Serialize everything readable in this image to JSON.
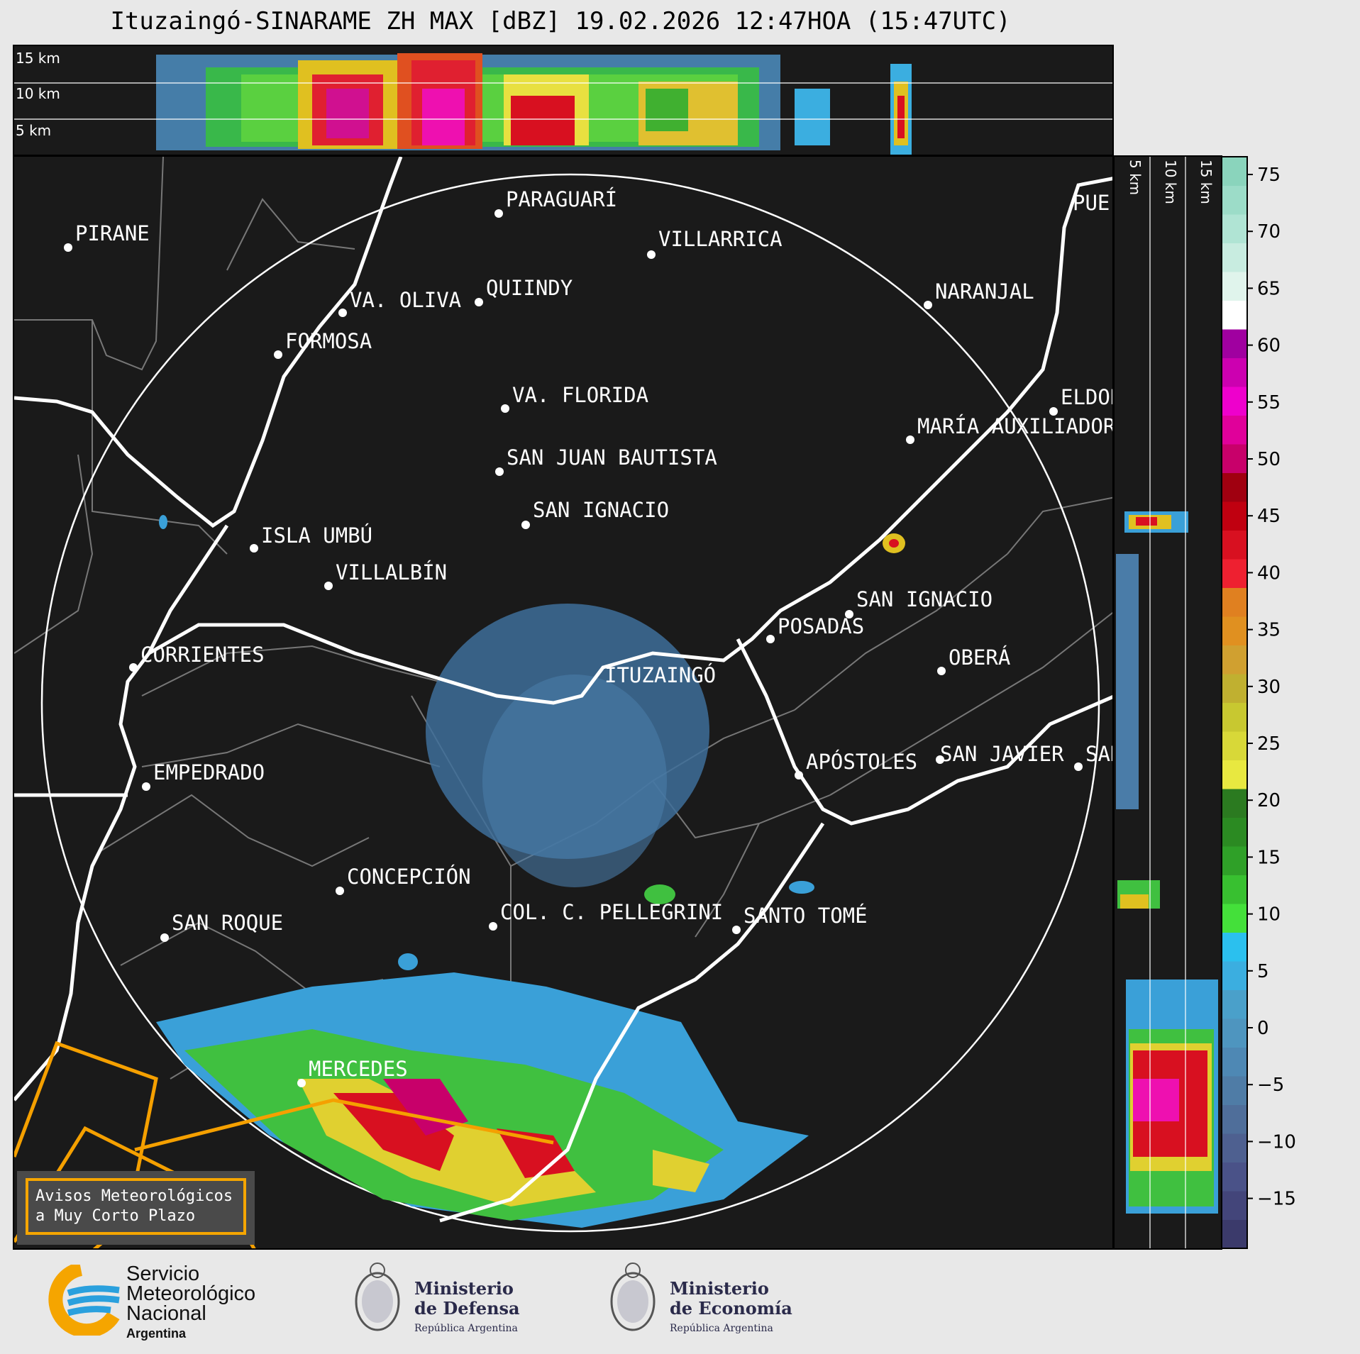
{
  "title": "Ituzaingó-SINARAME ZH MAX [dBZ] 19.02.2026 12:47HOA (15:47UTC)",
  "top_panel": {
    "km_labels": [
      "15 km",
      "10 km",
      "5 km"
    ]
  },
  "side_panel": {
    "km_labels": [
      "5 km",
      "10 km",
      "15 km"
    ]
  },
  "radar_site": "ITUZAINGÓ",
  "cities": [
    {
      "name": "PARAGUARÍ"
    },
    {
      "name": "VILLARRICA"
    },
    {
      "name": "PIRANE"
    },
    {
      "name": "QUIINDY"
    },
    {
      "name": "VA. OLIVA"
    },
    {
      "name": "NARANJAL"
    },
    {
      "name": "FORMOSA"
    },
    {
      "name": "VA. FLORIDA"
    },
    {
      "name": "ELDOR"
    },
    {
      "name": "MARÍA AUXILIADOR"
    },
    {
      "name": "SAN JUAN BAUTISTA"
    },
    {
      "name": "SAN IGNACIO"
    },
    {
      "name": "ISLA UMBÚ"
    },
    {
      "name": "VILLALBÍN"
    },
    {
      "name": "SAN IGNACIO"
    },
    {
      "name": "POSADAS"
    },
    {
      "name": "CORRIENTES"
    },
    {
      "name": "OBERÁ"
    },
    {
      "name": "EMPEDRADO"
    },
    {
      "name": "APÓSTOLES"
    },
    {
      "name": "SAN JAVIER"
    },
    {
      "name": "SAN"
    },
    {
      "name": "CONCEPCIÓN"
    },
    {
      "name": "COL. C. PELLEGRINI"
    },
    {
      "name": "SAN ROQUE"
    },
    {
      "name": "SANTO TOMÉ"
    },
    {
      "name": "MERCEDES"
    },
    {
      "name": "PUE"
    }
  ],
  "colorbar": {
    "ticks": [
      "75",
      "70",
      "65",
      "60",
      "55",
      "50",
      "45",
      "40",
      "35",
      "30",
      "25",
      "20",
      "15",
      "10",
      "5",
      "0",
      "−5",
      "−10",
      "−15"
    ],
    "colors": [
      "#3b3a6b",
      "#43457a",
      "#4a5288",
      "#4e6090",
      "#4f6e9a",
      "#4f7ca6",
      "#4e88b4",
      "#4e95bf",
      "#4aa0ca",
      "#3baee0",
      "#2bc0ee",
      "#44e03a",
      "#38c030",
      "#2fa028",
      "#2b8a22",
      "#2b7a20",
      "#e8e840",
      "#d8d838",
      "#c8c830",
      "#c0b030",
      "#d0a030",
      "#e09020",
      "#e08020",
      "#ee2030",
      "#d81020",
      "#c00010",
      "#a00010",
      "#c8006a",
      "#e0009a",
      "#ee00cc",
      "#cc00b0",
      "#a000a0",
      "#ffffff",
      "#e0f4ec",
      "#c8ece0",
      "#b0e4d4",
      "#9cdcc8",
      "#8ad4bc"
    ]
  },
  "warning_box": {
    "line1": "Avisos Meteorológicos",
    "line2": "a Muy Corto Plazo"
  },
  "footer": {
    "smn": {
      "line1": "Servicio",
      "line2": "Meteorológico",
      "line3": "Nacional",
      "line4": "Argentina"
    },
    "defensa": {
      "line1": "Ministerio",
      "line2": "de Defensa",
      "line3": "República Argentina"
    },
    "economia": {
      "line1": "Ministerio",
      "line2": "de Economía",
      "line3": "República Argentina"
    }
  }
}
